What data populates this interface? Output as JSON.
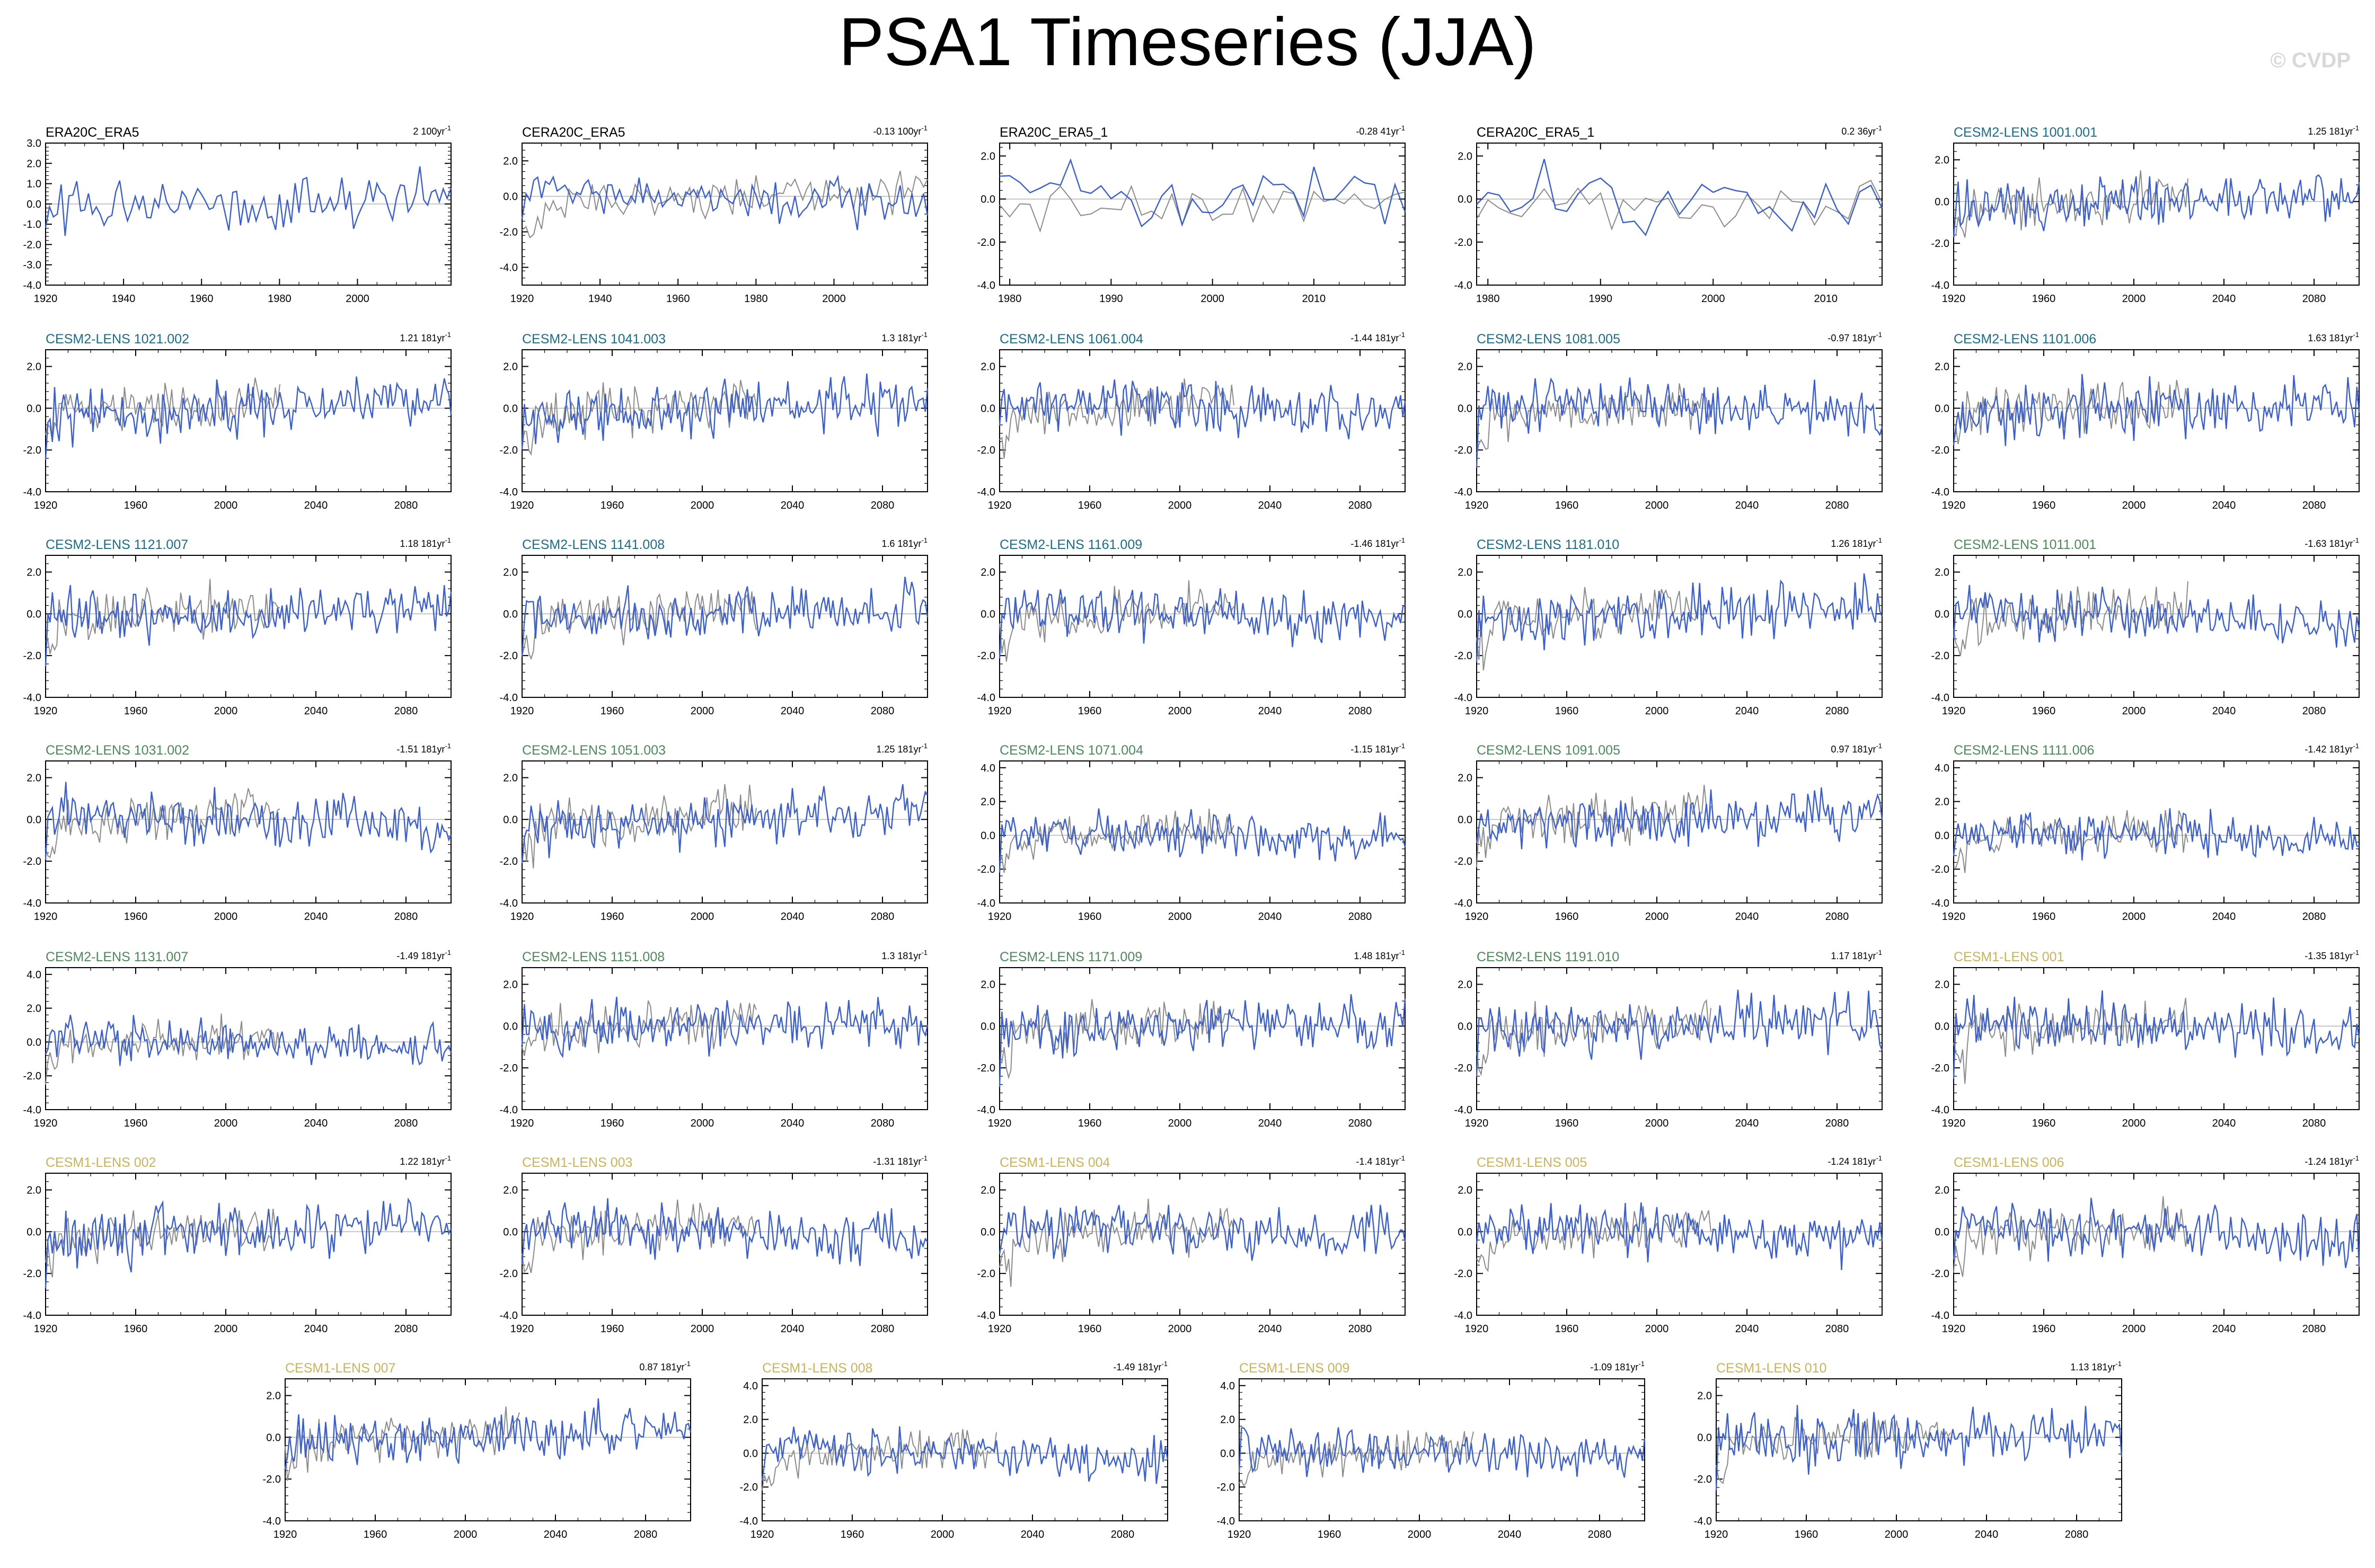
{
  "title": "PSA1 Timeseries (JJA)",
  "watermark": "© CVDP",
  "colors": {
    "model_line": "#3a5fd4",
    "obs_line": "#8c8c8c",
    "zero_line": "#b4b4b4",
    "title_obs": "#000000",
    "title_cesm2_blue": "#1a6e8a",
    "title_cesm2_green": "#4d8a5a",
    "title_cesm1": "#c9b45a"
  },
  "chart_data": [
    {
      "type": "line",
      "panel_title": "ERA20C_ERA5",
      "trend": "2",
      "trend_unit": "100yr",
      "title_color": "title_obs",
      "x_range": [
        1920,
        2024
      ],
      "x_ticks": [
        1920,
        1940,
        1960,
        1980,
        2000
      ],
      "y_range": [
        -4,
        3
      ],
      "y_ticks": [
        "3.0",
        "2.0",
        "1.0",
        "0.0",
        "-1.0",
        "-2.0",
        "-3.0",
        "-4.0"
      ],
      "series_label": "model",
      "seed": 1,
      "obs": false
    },
    {
      "type": "line",
      "panel_title": "CERA20C_ERA5",
      "trend": "-0.13",
      "trend_unit": "100yr",
      "title_color": "title_obs",
      "x_range": [
        1920,
        2024
      ],
      "x_ticks": [
        1920,
        1940,
        1960,
        1980,
        2000
      ],
      "y_range": [
        -5,
        3
      ],
      "y_ticks": [
        "2.0",
        "0.0",
        "-2.0",
        "-4.0"
      ],
      "series_label": "model",
      "seed": 2,
      "obs": true
    },
    {
      "type": "line",
      "panel_title": "ERA20C_ERA5_1",
      "trend": "-0.28",
      "trend_unit": "41yr",
      "title_color": "title_obs",
      "x_range": [
        1979,
        2019
      ],
      "x_ticks": [
        1980,
        1990,
        2000,
        2010
      ],
      "y_range": [
        -4,
        2.6
      ],
      "y_ticks": [
        "2.0",
        "0.0",
        "-2.0",
        "-4.0"
      ],
      "series_label": "model",
      "seed": 3,
      "obs": true
    },
    {
      "type": "line",
      "panel_title": "CERA20C_ERA5_1",
      "trend": "0.2",
      "trend_unit": "36yr",
      "title_color": "title_obs",
      "x_range": [
        1979,
        2015
      ],
      "x_ticks": [
        1980,
        1990,
        2000,
        2010
      ],
      "y_range": [
        -4,
        2.6
      ],
      "y_ticks": [
        "2.0",
        "0.0",
        "-2.0",
        "-4.0"
      ],
      "series_label": "model",
      "seed": 4,
      "obs": true
    },
    {
      "type": "line",
      "panel_title": "CESM2-LENS 1001.001",
      "trend": "1.25",
      "trend_unit": "181yr",
      "title_color": "title_cesm2_blue",
      "x_range": [
        1920,
        2100
      ],
      "x_ticks": [
        1920,
        1960,
        2000,
        2040,
        2080
      ],
      "y_range": [
        -4,
        2.8
      ],
      "y_ticks": [
        "2.0",
        "0.0",
        "-2.0",
        "-4.0"
      ],
      "series_label": "model",
      "seed": 5,
      "obs": true
    },
    {
      "type": "line",
      "panel_title": "CESM2-LENS 1021.002",
      "trend": "1.21",
      "trend_unit": "181yr",
      "title_color": "title_cesm2_blue",
      "x_range": [
        1920,
        2100
      ],
      "x_ticks": [
        1920,
        1960,
        2000,
        2040,
        2080
      ],
      "y_range": [
        -4,
        2.8
      ],
      "y_ticks": [
        "2.0",
        "0.0",
        "-2.0",
        "-4.0"
      ],
      "series_label": "model",
      "seed": 6,
      "obs": true
    },
    {
      "type": "line",
      "panel_title": "CESM2-LENS 1041.003",
      "trend": "1.3",
      "trend_unit": "181yr",
      "title_color": "title_cesm2_blue",
      "x_range": [
        1920,
        2100
      ],
      "x_ticks": [
        1920,
        1960,
        2000,
        2040,
        2080
      ],
      "y_range": [
        -4,
        2.8
      ],
      "y_ticks": [
        "2.0",
        "0.0",
        "-2.0",
        "-4.0"
      ],
      "series_label": "model",
      "seed": 7,
      "obs": true
    },
    {
      "type": "line",
      "panel_title": "CESM2-LENS 1061.004",
      "trend": "-1.44",
      "trend_unit": "181yr",
      "title_color": "title_cesm2_blue",
      "x_range": [
        1920,
        2100
      ],
      "x_ticks": [
        1920,
        1960,
        2000,
        2040,
        2080
      ],
      "y_range": [
        -4,
        2.8
      ],
      "y_ticks": [
        "2.0",
        "0.0",
        "-2.0",
        "-4.0"
      ],
      "series_label": "model",
      "seed": 8,
      "obs": true
    },
    {
      "type": "line",
      "panel_title": "CESM2-LENS 1081.005",
      "trend": "-0.97",
      "trend_unit": "181yr",
      "title_color": "title_cesm2_blue",
      "x_range": [
        1920,
        2100
      ],
      "x_ticks": [
        1920,
        1960,
        2000,
        2040,
        2080
      ],
      "y_range": [
        -4,
        2.8
      ],
      "y_ticks": [
        "2.0",
        "0.0",
        "-2.0",
        "-4.0"
      ],
      "series_label": "model",
      "seed": 9,
      "obs": true
    },
    {
      "type": "line",
      "panel_title": "CESM2-LENS 1101.006",
      "trend": "1.63",
      "trend_unit": "181yr",
      "title_color": "title_cesm2_blue",
      "x_range": [
        1920,
        2100
      ],
      "x_ticks": [
        1920,
        1960,
        2000,
        2040,
        2080
      ],
      "y_range": [
        -4,
        2.8
      ],
      "y_ticks": [
        "2.0",
        "0.0",
        "-2.0",
        "-4.0"
      ],
      "series_label": "model",
      "seed": 10,
      "obs": true
    },
    {
      "type": "line",
      "panel_title": "CESM2-LENS 1121.007",
      "trend": "1.18",
      "trend_unit": "181yr",
      "title_color": "title_cesm2_blue",
      "x_range": [
        1920,
        2100
      ],
      "x_ticks": [
        1920,
        1960,
        2000,
        2040,
        2080
      ],
      "y_range": [
        -4,
        2.8
      ],
      "y_ticks": [
        "2.0",
        "0.0",
        "-2.0",
        "-4.0"
      ],
      "series_label": "model",
      "seed": 11,
      "obs": true
    },
    {
      "type": "line",
      "panel_title": "CESM2-LENS 1141.008",
      "trend": "1.6",
      "trend_unit": "181yr",
      "title_color": "title_cesm2_blue",
      "x_range": [
        1920,
        2100
      ],
      "x_ticks": [
        1920,
        1960,
        2000,
        2040,
        2080
      ],
      "y_range": [
        -4,
        2.8
      ],
      "y_ticks": [
        "2.0",
        "0.0",
        "-2.0",
        "-4.0"
      ],
      "series_label": "model",
      "seed": 12,
      "obs": true
    },
    {
      "type": "line",
      "panel_title": "CESM2-LENS 1161.009",
      "trend": "-1.46",
      "trend_unit": "181yr",
      "title_color": "title_cesm2_blue",
      "x_range": [
        1920,
        2100
      ],
      "x_ticks": [
        1920,
        1960,
        2000,
        2040,
        2080
      ],
      "y_range": [
        -4,
        2.8
      ],
      "y_ticks": [
        "2.0",
        "0.0",
        "-2.0",
        "-4.0"
      ],
      "series_label": "model",
      "seed": 13,
      "obs": true
    },
    {
      "type": "line",
      "panel_title": "CESM2-LENS 1181.010",
      "trend": "1.26",
      "trend_unit": "181yr",
      "title_color": "title_cesm2_blue",
      "x_range": [
        1920,
        2100
      ],
      "x_ticks": [
        1920,
        1960,
        2000,
        2040,
        2080
      ],
      "y_range": [
        -4,
        2.8
      ],
      "y_ticks": [
        "2.0",
        "0.0",
        "-2.0",
        "-4.0"
      ],
      "series_label": "model",
      "seed": 14,
      "obs": true
    },
    {
      "type": "line",
      "panel_title": "CESM2-LENS 1011.001",
      "trend": "-1.63",
      "trend_unit": "181yr",
      "title_color": "title_cesm2_green",
      "x_range": [
        1920,
        2100
      ],
      "x_ticks": [
        1920,
        1960,
        2000,
        2040,
        2080
      ],
      "y_range": [
        -4,
        2.8
      ],
      "y_ticks": [
        "2.0",
        "0.0",
        "-2.0",
        "-4.0"
      ],
      "series_label": "model",
      "seed": 15,
      "obs": true
    },
    {
      "type": "line",
      "panel_title": "CESM2-LENS 1031.002",
      "trend": "-1.51",
      "trend_unit": "181yr",
      "title_color": "title_cesm2_green",
      "x_range": [
        1920,
        2100
      ],
      "x_ticks": [
        1920,
        1960,
        2000,
        2040,
        2080
      ],
      "y_range": [
        -4,
        2.8
      ],
      "y_ticks": [
        "2.0",
        "0.0",
        "-2.0",
        "-4.0"
      ],
      "series_label": "model",
      "seed": 16,
      "obs": true
    },
    {
      "type": "line",
      "panel_title": "CESM2-LENS 1051.003",
      "trend": "1.25",
      "trend_unit": "181yr",
      "title_color": "title_cesm2_green",
      "x_range": [
        1920,
        2100
      ],
      "x_ticks": [
        1920,
        1960,
        2000,
        2040,
        2080
      ],
      "y_range": [
        -4,
        2.8
      ],
      "y_ticks": [
        "2.0",
        "0.0",
        "-2.0",
        "-4.0"
      ],
      "series_label": "model",
      "seed": 17,
      "obs": true
    },
    {
      "type": "line",
      "panel_title": "CESM2-LENS 1071.004",
      "trend": "-1.15",
      "trend_unit": "181yr",
      "title_color": "title_cesm2_green",
      "x_range": [
        1920,
        2100
      ],
      "x_ticks": [
        1920,
        1960,
        2000,
        2040,
        2080
      ],
      "y_range": [
        -4,
        4.4
      ],
      "y_ticks": [
        "4.0",
        "2.0",
        "0.0",
        "-2.0",
        "-4.0"
      ],
      "series_label": "model",
      "seed": 18,
      "obs": true
    },
    {
      "type": "line",
      "panel_title": "CESM2-LENS 1091.005",
      "trend": "0.97",
      "trend_unit": "181yr",
      "title_color": "title_cesm2_green",
      "x_range": [
        1920,
        2100
      ],
      "x_ticks": [
        1920,
        1960,
        2000,
        2040,
        2080
      ],
      "y_range": [
        -4,
        2.8
      ],
      "y_ticks": [
        "2.0",
        "0.0",
        "-2.0",
        "-4.0"
      ],
      "series_label": "model",
      "seed": 19,
      "obs": true
    },
    {
      "type": "line",
      "panel_title": "CESM2-LENS 1111.006",
      "trend": "-1.42",
      "trend_unit": "181yr",
      "title_color": "title_cesm2_green",
      "x_range": [
        1920,
        2100
      ],
      "x_ticks": [
        1920,
        1960,
        2000,
        2040,
        2080
      ],
      "y_range": [
        -4,
        4.4
      ],
      "y_ticks": [
        "4.0",
        "2.0",
        "0.0",
        "-2.0",
        "-4.0"
      ],
      "series_label": "model",
      "seed": 20,
      "obs": true
    },
    {
      "type": "line",
      "panel_title": "CESM2-LENS 1131.007",
      "trend": "-1.49",
      "trend_unit": "181yr",
      "title_color": "title_cesm2_green",
      "x_range": [
        1920,
        2100
      ],
      "x_ticks": [
        1920,
        1960,
        2000,
        2040,
        2080
      ],
      "y_range": [
        -4,
        4.4
      ],
      "y_ticks": [
        "4.0",
        "2.0",
        "0.0",
        "-2.0",
        "-4.0"
      ],
      "series_label": "model",
      "seed": 21,
      "obs": true
    },
    {
      "type": "line",
      "panel_title": "CESM2-LENS 1151.008",
      "trend": "1.3",
      "trend_unit": "181yr",
      "title_color": "title_cesm2_green",
      "x_range": [
        1920,
        2100
      ],
      "x_ticks": [
        1920,
        1960,
        2000,
        2040,
        2080
      ],
      "y_range": [
        -4,
        2.8
      ],
      "y_ticks": [
        "2.0",
        "0.0",
        "-2.0",
        "-4.0"
      ],
      "series_label": "model",
      "seed": 22,
      "obs": true
    },
    {
      "type": "line",
      "panel_title": "CESM2-LENS 1171.009",
      "trend": "1.48",
      "trend_unit": "181yr",
      "title_color": "title_cesm2_green",
      "x_range": [
        1920,
        2100
      ],
      "x_ticks": [
        1920,
        1960,
        2000,
        2040,
        2080
      ],
      "y_range": [
        -4,
        2.8
      ],
      "y_ticks": [
        "2.0",
        "0.0",
        "-2.0",
        "-4.0"
      ],
      "series_label": "model",
      "seed": 23,
      "obs": true
    },
    {
      "type": "line",
      "panel_title": "CESM2-LENS 1191.010",
      "trend": "1.17",
      "trend_unit": "181yr",
      "title_color": "title_cesm2_green",
      "x_range": [
        1920,
        2100
      ],
      "x_ticks": [
        1920,
        1960,
        2000,
        2040,
        2080
      ],
      "y_range": [
        -4,
        2.8
      ],
      "y_ticks": [
        "2.0",
        "0.0",
        "-2.0",
        "-4.0"
      ],
      "series_label": "model",
      "seed": 24,
      "obs": true
    },
    {
      "type": "line",
      "panel_title": "CESM1-LENS 001",
      "trend": "-1.35",
      "trend_unit": "181yr",
      "title_color": "title_cesm1",
      "x_range": [
        1920,
        2100
      ],
      "x_ticks": [
        1920,
        1960,
        2000,
        2040,
        2080
      ],
      "y_range": [
        -4,
        2.8
      ],
      "y_ticks": [
        "2.0",
        "0.0",
        "-2.0",
        "-4.0"
      ],
      "series_label": "model",
      "seed": 25,
      "obs": true
    },
    {
      "type": "line",
      "panel_title": "CESM1-LENS 002",
      "trend": "1.22",
      "trend_unit": "181yr",
      "title_color": "title_cesm1",
      "x_range": [
        1920,
        2100
      ],
      "x_ticks": [
        1920,
        1960,
        2000,
        2040,
        2080
      ],
      "y_range": [
        -4,
        2.8
      ],
      "y_ticks": [
        "2.0",
        "0.0",
        "-2.0",
        "-4.0"
      ],
      "series_label": "model",
      "seed": 26,
      "obs": true
    },
    {
      "type": "line",
      "panel_title": "CESM1-LENS 003",
      "trend": "-1.31",
      "trend_unit": "181yr",
      "title_color": "title_cesm1",
      "x_range": [
        1920,
        2100
      ],
      "x_ticks": [
        1920,
        1960,
        2000,
        2040,
        2080
      ],
      "y_range": [
        -4,
        2.8
      ],
      "y_ticks": [
        "2.0",
        "0.0",
        "-2.0",
        "-4.0"
      ],
      "series_label": "model",
      "seed": 27,
      "obs": true
    },
    {
      "type": "line",
      "panel_title": "CESM1-LENS 004",
      "trend": "-1.4",
      "trend_unit": "181yr",
      "title_color": "title_cesm1",
      "x_range": [
        1920,
        2100
      ],
      "x_ticks": [
        1920,
        1960,
        2000,
        2040,
        2080
      ],
      "y_range": [
        -4,
        2.8
      ],
      "y_ticks": [
        "2.0",
        "0.0",
        "-2.0",
        "-4.0"
      ],
      "series_label": "model",
      "seed": 28,
      "obs": true
    },
    {
      "type": "line",
      "panel_title": "CESM1-LENS 005",
      "trend": "-1.24",
      "trend_unit": "181yr",
      "title_color": "title_cesm1",
      "x_range": [
        1920,
        2100
      ],
      "x_ticks": [
        1920,
        1960,
        2000,
        2040,
        2080
      ],
      "y_range": [
        -4,
        2.8
      ],
      "y_ticks": [
        "2.0",
        "0.0",
        "-2.0",
        "-4.0"
      ],
      "series_label": "model",
      "seed": 29,
      "obs": true
    },
    {
      "type": "line",
      "panel_title": "CESM1-LENS 006",
      "trend": "-1.24",
      "trend_unit": "181yr",
      "title_color": "title_cesm1",
      "x_range": [
        1920,
        2100
      ],
      "x_ticks": [
        1920,
        1960,
        2000,
        2040,
        2080
      ],
      "y_range": [
        -4,
        2.8
      ],
      "y_ticks": [
        "2.0",
        "0.0",
        "-2.0",
        "-4.0"
      ],
      "series_label": "model",
      "seed": 30,
      "obs": true
    },
    {
      "type": "line",
      "panel_title": "CESM1-LENS 007",
      "trend": "0.87",
      "trend_unit": "181yr",
      "title_color": "title_cesm1",
      "x_range": [
        1920,
        2100
      ],
      "x_ticks": [
        1920,
        1960,
        2000,
        2040,
        2080
      ],
      "y_range": [
        -4,
        2.8
      ],
      "y_ticks": [
        "2.0",
        "0.0",
        "-2.0",
        "-4.0"
      ],
      "series_label": "model",
      "seed": 31,
      "obs": true
    },
    {
      "type": "line",
      "panel_title": "CESM1-LENS 008",
      "trend": "-1.49",
      "trend_unit": "181yr",
      "title_color": "title_cesm1",
      "x_range": [
        1920,
        2100
      ],
      "x_ticks": [
        1920,
        1960,
        2000,
        2040,
        2080
      ],
      "y_range": [
        -4,
        4.4
      ],
      "y_ticks": [
        "4.0",
        "2.0",
        "0.0",
        "-2.0",
        "-4.0"
      ],
      "series_label": "model",
      "seed": 32,
      "obs": true
    },
    {
      "type": "line",
      "panel_title": "CESM1-LENS 009",
      "trend": "-1.09",
      "trend_unit": "181yr",
      "title_color": "title_cesm1",
      "x_range": [
        1920,
        2100
      ],
      "x_ticks": [
        1920,
        1960,
        2000,
        2040,
        2080
      ],
      "y_range": [
        -4,
        4.4
      ],
      "y_ticks": [
        "4.0",
        "2.0",
        "0.0",
        "-2.0",
        "-4.0"
      ],
      "series_label": "model",
      "seed": 33,
      "obs": true
    },
    {
      "type": "line",
      "panel_title": "CESM1-LENS 010",
      "trend": "1.13",
      "trend_unit": "181yr",
      "title_color": "title_cesm1",
      "x_range": [
        1920,
        2100
      ],
      "x_ticks": [
        1920,
        1960,
        2000,
        2040,
        2080
      ],
      "y_range": [
        -4,
        2.8
      ],
      "y_ticks": [
        "2.0",
        "0.0",
        "-2.0",
        "-4.0"
      ],
      "series_label": "model",
      "seed": 34,
      "obs": true
    }
  ]
}
